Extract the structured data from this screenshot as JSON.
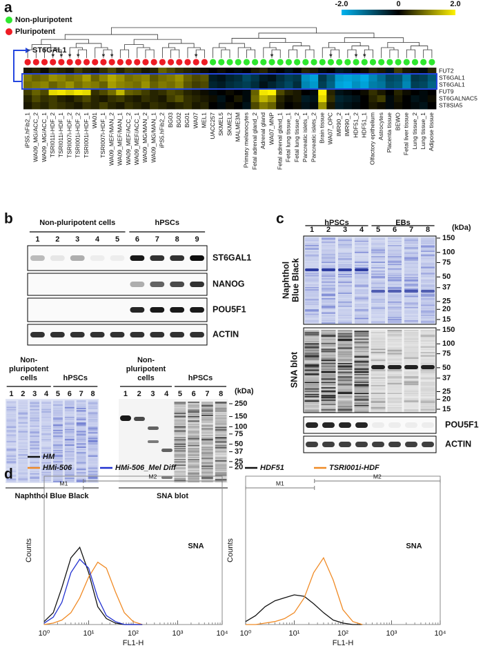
{
  "panel_a": {
    "letter": "a",
    "type": "heatmap",
    "legend": [
      {
        "label": "Non-pluripotent",
        "color": "#2ee82e"
      },
      {
        "label": "Pluripotent",
        "color": "#ee1c24"
      }
    ],
    "colorbar": {
      "ticks": [
        {
          "value": -2,
          "label": "-2.0"
        },
        0,
        {
          "value": 2,
          "label": "2.0"
        }
      ],
      "colors": [
        "#00b4f0",
        "#000000",
        "#fff200"
      ]
    },
    "highlight": {
      "label": "ST6GAL1",
      "color": "#2446e0"
    },
    "rows": [
      "FUT2",
      "ST6GAL1",
      "ST6GAL1",
      "FUT9",
      "ST6GALNAC5",
      "ST8SIA5"
    ],
    "columns": [
      {
        "label": "iPS5.hFib2_1",
        "pluripotent": true
      },
      {
        "label": "WA09_MG/ACC_2",
        "pluripotent": true
      },
      {
        "label": "WA09_MG/ACC_1",
        "pluripotent": true
      },
      {
        "label": "TSRI011i-HDF_2",
        "pluripotent": true,
        "mark": "*",
        "mark_color": "#c040c0"
      },
      {
        "label": "TSRI011i-HDF_1",
        "pluripotent": true,
        "mark": "*",
        "mark_color": "#c040c0"
      },
      {
        "label": "TSRI007i-HDF_2",
        "pluripotent": true,
        "mark": "*",
        "mark_color": "#c040c0"
      },
      {
        "label": "TSRI001i-HDF_2",
        "pluripotent": true,
        "mark": "*",
        "mark_color": "#c040c0"
      },
      {
        "label": "TSRI001i-HDF_1",
        "pluripotent": true
      },
      {
        "label": "WA01",
        "pluripotent": true
      },
      {
        "label": "TSRI007i-HDF_1",
        "pluripotent": true,
        "mark": "*",
        "mark_color": "#c040c0"
      },
      {
        "label": "WA09_MEF/MAN_2",
        "pluripotent": true,
        "mark": "*",
        "mark_color": "#c040c0"
      },
      {
        "label": "WA09_MEF/MAN_1",
        "pluripotent": true
      },
      {
        "label": "WA09_MEF/ACC_2",
        "pluripotent": true
      },
      {
        "label": "WA09_MEF/ACC_1",
        "pluripotent": true
      },
      {
        "label": "WA09_MG/MAN_2",
        "pluripotent": true
      },
      {
        "label": "WA09_MG/MAN_1",
        "pluripotent": true
      },
      {
        "label": "iPS5.hFib2_2",
        "pluripotent": true
      },
      {
        "label": "BG03",
        "pluripotent": true
      },
      {
        "label": "BG02",
        "pluripotent": true
      },
      {
        "label": "BG01",
        "pluripotent": true
      },
      {
        "label": "WA07",
        "pluripotent": true,
        "mark": "*",
        "mark_color": "#111111"
      },
      {
        "label": "MEL1",
        "pluripotent": true
      },
      {
        "label": "UACC257",
        "pluripotent": false
      },
      {
        "label": "SKMEL5",
        "pluripotent": false
      },
      {
        "label": "SKMEL2",
        "pluripotent": false
      },
      {
        "label": "MALME3M",
        "pluripotent": false
      },
      {
        "label": "Primary melanocytes",
        "pluripotent": false
      },
      {
        "label": "Fetal adrenal gland_2",
        "pluripotent": false
      },
      {
        "label": "Adrenal gland",
        "pluripotent": false
      },
      {
        "label": "WA07_MNP",
        "pluripotent": false,
        "mark": "*",
        "mark_color": "#111111"
      },
      {
        "label": "Fetal adrenal gland_1",
        "pluripotent": false
      },
      {
        "label": "Fetal lung tissue_1",
        "pluripotent": false
      },
      {
        "label": "Fetal lung tissue_2",
        "pluripotent": false
      },
      {
        "label": "Pancreatic islets_1",
        "pluripotent": false
      },
      {
        "label": "Pancreatic islets_2",
        "pluripotent": false
      },
      {
        "label": "Brain tissue",
        "pluripotent": false
      },
      {
        "label": "WA07_OPC",
        "pluripotent": false,
        "mark": "*",
        "mark_color": "#111111"
      },
      {
        "label": "IMR90_2",
        "pluripotent": false
      },
      {
        "label": "IMR90_1",
        "pluripotent": false
      },
      {
        "label": "HDF51_2",
        "pluripotent": false,
        "mark": "*",
        "mark_color": "#c040c0"
      },
      {
        "label": "HDF51_1",
        "pluripotent": false,
        "mark": "*",
        "mark_color": "#c040c0"
      },
      {
        "label": "Olfactory epithelium",
        "pluripotent": false
      },
      {
        "label": "Astrocytes",
        "pluripotent": false
      },
      {
        "label": "Placenta tissue",
        "pluripotent": false
      },
      {
        "label": "BEWO",
        "pluripotent": false
      },
      {
        "label": "Fetal liver tissue",
        "pluripotent": false
      },
      {
        "label": "Lung tissue_2",
        "pluripotent": false
      },
      {
        "label": "Lung tissue_1",
        "pluripotent": false
      },
      {
        "label": "Adipose tissue",
        "pluripotent": false
      }
    ],
    "values": [
      [
        0.2,
        0.3,
        0.1,
        0.4,
        0.3,
        0.2,
        0.5,
        0.3,
        0.2,
        0.4,
        0.6,
        0.3,
        0.5,
        0.4,
        0.2,
        0.3,
        0.8,
        0.6,
        0.4,
        0.3,
        0.2,
        0.1,
        0,
        0.1,
        0,
        -0.1,
        0,
        0.2,
        0.3,
        0.1,
        0,
        -0.2,
        0,
        0.3,
        0.2,
        -0.1,
        0,
        -0.3,
        -0.2,
        0,
        0.1,
        0.3,
        0.2,
        -0.2,
        0.5,
        0.2,
        0.1,
        -0.1,
        0.3
      ],
      [
        1.0,
        0.8,
        0.9,
        1.2,
        1.1,
        0.9,
        1.0,
        1.3,
        0.8,
        1.1,
        1.4,
        1.2,
        0.9,
        1.0,
        1.1,
        0.7,
        0.9,
        1.0,
        1.2,
        0.8,
        0.6,
        0.7,
        -0.3,
        -0.2,
        -0.4,
        -0.5,
        -0.8,
        -0.6,
        -0.3,
        -0.2,
        -0.5,
        -0.7,
        -0.6,
        -1.6,
        -1.8,
        -0.6,
        -1.0,
        -1.7,
        -1.8,
        -1.7,
        -1.9,
        -1.5,
        -1.2,
        -0.8,
        -0.9,
        -1.4,
        -0.6,
        -0.7,
        -1.0
      ],
      [
        0.9,
        1.0,
        1.1,
        0.8,
        1.0,
        1.2,
        0.9,
        1.1,
        1.0,
        0.8,
        1.3,
        1.1,
        1.0,
        0.9,
        1.2,
        0.8,
        1.0,
        0.9,
        1.1,
        0.7,
        0.5,
        0.6,
        -0.4,
        -0.3,
        -0.5,
        -0.6,
        -0.7,
        -0.5,
        -0.2,
        -0.4,
        -0.6,
        -0.8,
        -0.5,
        -1.5,
        -1.7,
        -0.7,
        -1.1,
        -1.8,
        -1.9,
        -1.6,
        -1.8,
        -1.4,
        -1.3,
        -0.9,
        -1.0,
        -1.5,
        -0.7,
        -0.8,
        -1.1
      ],
      [
        0.5,
        0.8,
        0.6,
        1.8,
        1.9,
        1.7,
        1.9,
        1.8,
        0.4,
        0.6,
        0.9,
        1.5,
        0.8,
        0.7,
        0.5,
        0.3,
        0.4,
        0.6,
        0.5,
        0.3,
        0.2,
        0.1,
        -0.1,
        0,
        0.1,
        0,
        -0.1,
        0.8,
        1.9,
        2.0,
        0.6,
        0.3,
        0.2,
        0,
        -0.1,
        2.0,
        0.3,
        -0.2,
        -0.1,
        0,
        0.1,
        0.4,
        0.2,
        0,
        0.3,
        0.1,
        0,
        -0.1,
        0
      ],
      [
        0.3,
        0.6,
        0.4,
        0.5,
        0.3,
        0.2,
        0.4,
        0.6,
        0.3,
        0.2,
        0.4,
        0.5,
        0.3,
        0.2,
        0.4,
        0.3,
        0.2,
        0.5,
        0.7,
        0.4,
        0.3,
        0.2,
        0.1,
        -0.2,
        0,
        0.2,
        -0.1,
        0.9,
        1.5,
        1.2,
        0.3,
        0.1,
        0.2,
        -0.3,
        -0.2,
        1.8,
        0.4,
        -0.4,
        -0.3,
        -0.2,
        0,
        0.3,
        0.5,
        -0.1,
        0.2,
        0,
        -0.2,
        -0.1,
        0.1
      ],
      [
        0.2,
        0.4,
        0.3,
        0.5,
        0.4,
        0.3,
        0.2,
        0.4,
        0.3,
        0.5,
        0.3,
        0.2,
        0.4,
        0.3,
        0.2,
        0.4,
        0.3,
        0.2,
        0.3,
        0.4,
        0.2,
        0.3,
        0,
        -0.1,
        0.1,
        0,
        -0.2,
        0.6,
        1.0,
        0.8,
        0.2,
        0,
        0.1,
        -0.2,
        -0.1,
        1.2,
        0.2,
        -0.3,
        -0.2,
        -0.1,
        0,
        0.2,
        0.1,
        -0.1,
        0.1,
        0,
        -0.1,
        -0.2,
        0
      ]
    ]
  },
  "panel_b": {
    "letter": "b",
    "western": {
      "groups": [
        {
          "label": "Non-pluripotent cells",
          "lanes": [
            1,
            2,
            3,
            4,
            5
          ]
        },
        {
          "label": "hPSCs",
          "lanes": [
            6,
            7,
            8,
            9
          ]
        }
      ],
      "blots": [
        "ST6GAL1",
        "NANOG",
        "POU5F1",
        "ACTIN"
      ]
    },
    "stain": {
      "groups": [
        {
          "label_lines": [
            "Non-",
            "pluripotent",
            "cells"
          ],
          "lanes": [
            1,
            2,
            3,
            4
          ]
        },
        {
          "label": "hPSCs",
          "lanes": [
            5,
            6,
            7,
            8
          ]
        }
      ],
      "caption": "Naphthol Blue Black"
    },
    "sna": {
      "groups": [
        {
          "label_lines": [
            "Non-",
            "pluripotent",
            "cells"
          ],
          "lanes": [
            1,
            2,
            3,
            4
          ]
        },
        {
          "label": "hPSCs",
          "lanes": [
            5,
            6,
            7,
            8
          ]
        }
      ],
      "caption": "SNA blot",
      "kda_label": "(kDa)",
      "kda": [
        250,
        150,
        100,
        75,
        50,
        37,
        25,
        20
      ]
    }
  },
  "panel_c": {
    "letter": "c",
    "groups": [
      {
        "label": "hPSCs",
        "lanes": [
          1,
          2,
          3,
          4
        ]
      },
      {
        "label": "EBs",
        "lanes": [
          5,
          6,
          7,
          8
        ]
      }
    ],
    "kda_label": "(kDa)",
    "stain": {
      "label_lines": [
        "Naphthol",
        "Blue Black"
      ],
      "kda": [
        150,
        100,
        75,
        50,
        37,
        25,
        20,
        15
      ]
    },
    "sna": {
      "label": "SNA blot",
      "kda": [
        150,
        100,
        75,
        50,
        37,
        25,
        20,
        15
      ]
    },
    "blots": [
      "POU5F1",
      "ACTIN"
    ]
  },
  "panel_d": {
    "letter": "d",
    "charts": [
      {
        "type": "line",
        "xscale": "log",
        "xlabel": "FL1-H",
        "ylabel": "Counts",
        "annotation": "SNA",
        "xlim": [
          1,
          10000
        ],
        "xticks": [
          {
            "value": 1,
            "label": "10⁰"
          },
          {
            "value": 10,
            "label": "10¹"
          },
          {
            "value": 100,
            "label": "10²"
          },
          {
            "value": 1000,
            "label": "10³"
          },
          {
            "value": 10000,
            "label": "10⁴"
          }
        ],
        "ylim": [
          0,
          100
        ],
        "gates": [
          {
            "name": "M1",
            "range": [
              1,
              7.6
            ]
          },
          {
            "name": "M2",
            "range": [
              7.6,
              10000
            ]
          }
        ],
        "x": [
          1,
          1.6,
          2.5,
          4,
          6.3,
          10,
          16,
          25,
          40,
          63,
          100,
          160
        ],
        "series": [
          {
            "name": "HM",
            "color": "#111111",
            "values": [
              2,
              8,
              25,
              45,
              52,
              35,
              12,
              4,
              1,
              0,
              0,
              0
            ]
          },
          {
            "name": "HMi-506",
            "color": "#f08a24",
            "values": [
              0,
              1,
              3,
              8,
              18,
              32,
              42,
              38,
              22,
              8,
              2,
              0
            ]
          },
          {
            "name": "HMi-506_Mel Diff",
            "color": "#2030d0",
            "values": [
              1,
              5,
              15,
              35,
              44,
              38,
              18,
              6,
              2,
              0,
              0,
              0
            ]
          }
        ]
      },
      {
        "type": "line",
        "xscale": "log",
        "xlabel": "FL1-H",
        "ylabel": "Counts",
        "annotation": "SNA",
        "xlim": [
          1,
          10000
        ],
        "xticks": [
          {
            "value": 1,
            "label": "10⁰"
          },
          {
            "value": 10,
            "label": "10¹"
          },
          {
            "value": 100,
            "label": "10²"
          },
          {
            "value": 1000,
            "label": "10³"
          },
          {
            "value": 10000,
            "label": "10⁴"
          }
        ],
        "ylim": [
          0,
          100
        ],
        "gates": [
          {
            "name": "M1",
            "range": [
              1,
              26
            ]
          },
          {
            "name": "M2",
            "range": [
              26,
              10000
            ]
          }
        ],
        "x": [
          1,
          1.6,
          2.5,
          4,
          6.3,
          10,
          16,
          25,
          40,
          63,
          100,
          160,
          250
        ],
        "series": [
          {
            "name": "HDF51",
            "color": "#111111",
            "values": [
              2,
              6,
              12,
              16,
              18,
              20,
              19,
              14,
              8,
              3,
              1,
              0,
              0
            ]
          },
          {
            "name": "TSRI001i-HDF",
            "color": "#f08a24",
            "values": [
              0,
              0,
              1,
              2,
              4,
              8,
              18,
              35,
              45,
              30,
              10,
              2,
              0
            ]
          }
        ]
      }
    ]
  }
}
